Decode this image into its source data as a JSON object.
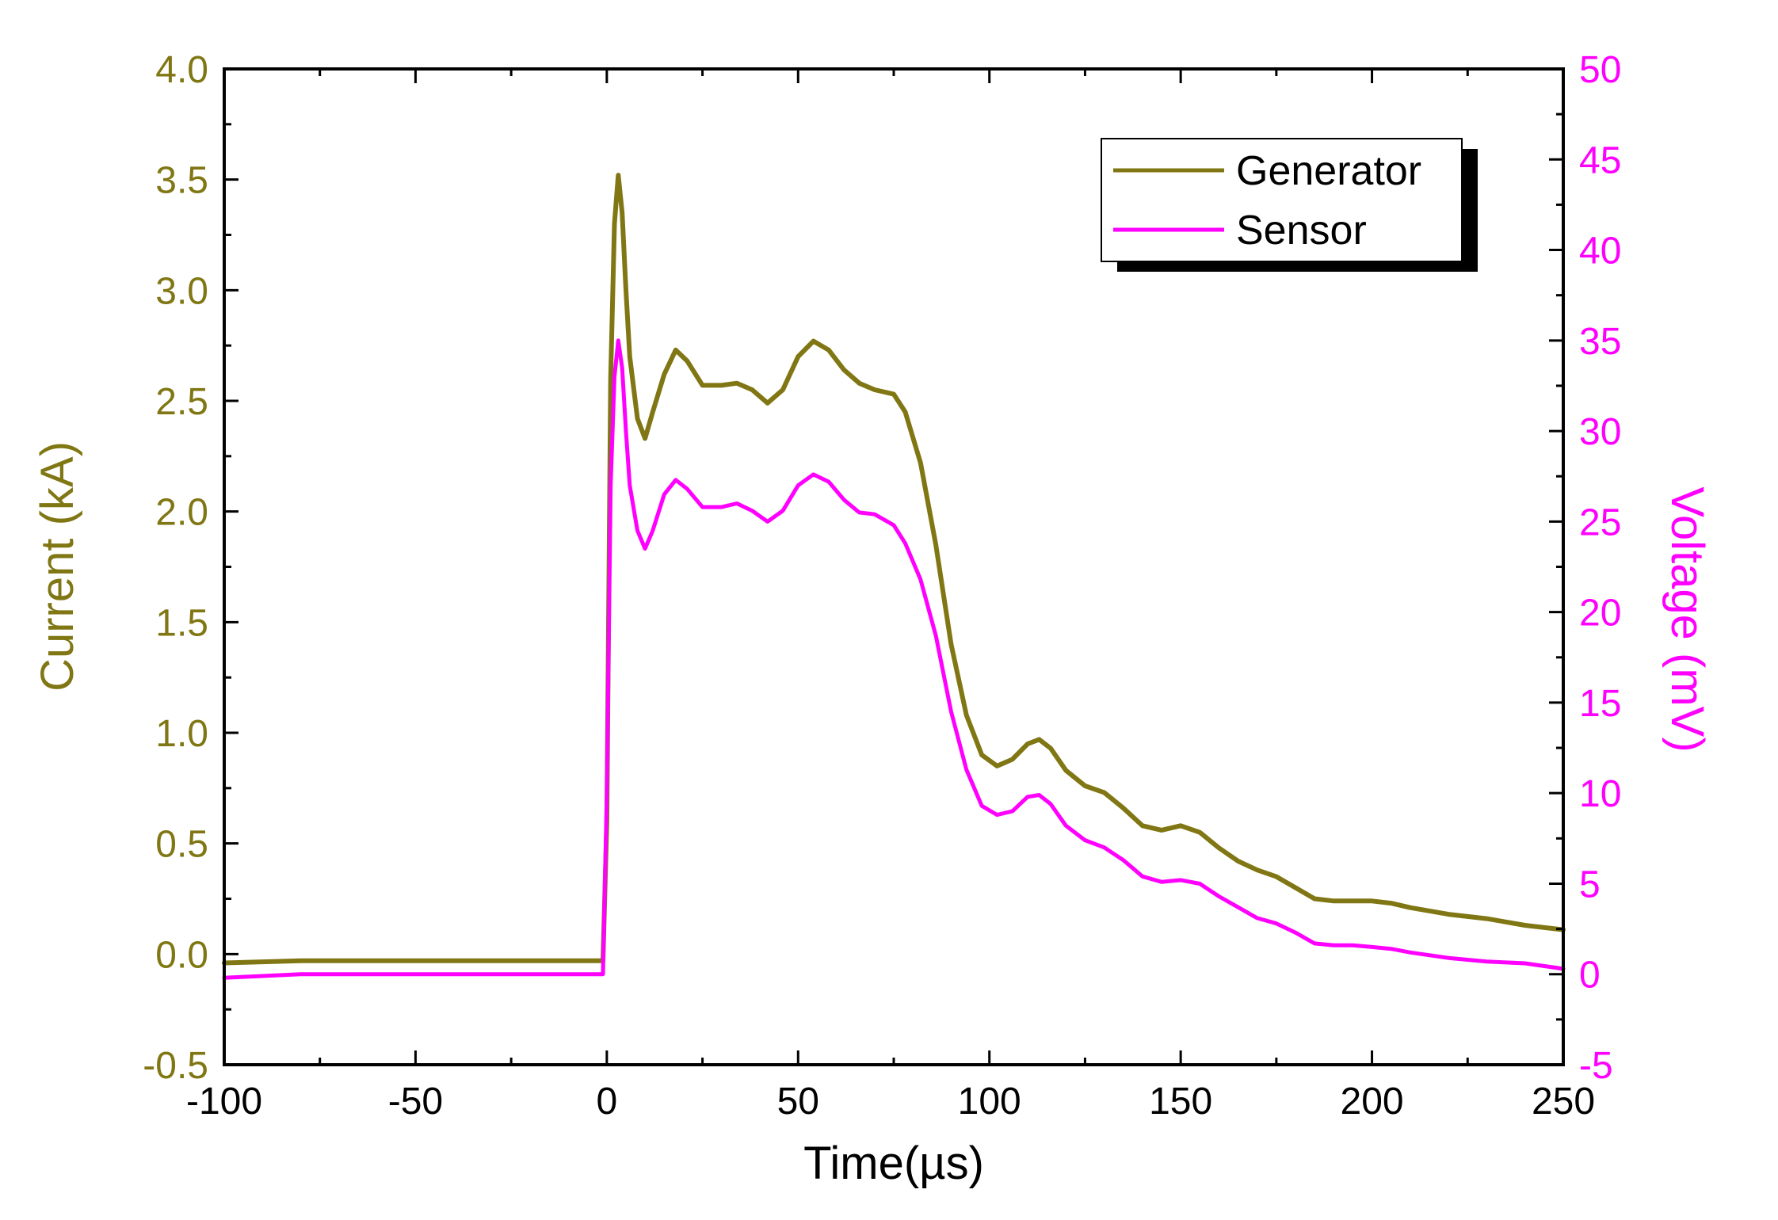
{
  "colors": {
    "generator": "#807714",
    "sensor": "#ff00ff",
    "axis": "#000000",
    "left_axis_text": "#807714",
    "right_axis_text": "#ff00ff"
  },
  "chart_data": {
    "type": "line",
    "xlabel": "Time(µs)",
    "ylabel_left": "Current (kA)",
    "ylabel_right": "Voltage (mV)",
    "xlim": [
      -100,
      250
    ],
    "ylim_left": [
      -0.5,
      4.0
    ],
    "ylim_right": [
      -5,
      50
    ],
    "grid": false,
    "legend_position": "top-right",
    "x_ticks": [
      "-100",
      "-50",
      "0",
      "50",
      "100",
      "150",
      "200",
      "250"
    ],
    "y_left_ticks": [
      "-0.5",
      "0.0",
      "0.5",
      "1.0",
      "1.5",
      "2.0",
      "2.5",
      "3.0",
      "3.5",
      "4.0"
    ],
    "y_right_ticks": [
      "-5",
      "0",
      "5",
      "10",
      "15",
      "20",
      "25",
      "30",
      "35",
      "40",
      "45",
      "50"
    ],
    "series": [
      {
        "name": "Generator",
        "axis": "left",
        "points": [
          [
            -100,
            -0.04
          ],
          [
            -80,
            -0.03
          ],
          [
            -60,
            -0.03
          ],
          [
            -40,
            -0.03
          ],
          [
            -20,
            -0.03
          ],
          [
            -1,
            -0.03
          ],
          [
            0,
            0.6
          ],
          [
            1,
            2.6
          ],
          [
            2,
            3.3
          ],
          [
            3,
            3.52
          ],
          [
            4,
            3.35
          ],
          [
            5,
            3.0
          ],
          [
            6,
            2.7
          ],
          [
            8,
            2.42
          ],
          [
            10,
            2.33
          ],
          [
            12,
            2.45
          ],
          [
            15,
            2.62
          ],
          [
            18,
            2.73
          ],
          [
            21,
            2.68
          ],
          [
            25,
            2.57
          ],
          [
            30,
            2.57
          ],
          [
            34,
            2.58
          ],
          [
            38,
            2.55
          ],
          [
            42,
            2.49
          ],
          [
            46,
            2.55
          ],
          [
            50,
            2.7
          ],
          [
            54,
            2.77
          ],
          [
            58,
            2.73
          ],
          [
            62,
            2.64
          ],
          [
            66,
            2.58
          ],
          [
            70,
            2.55
          ],
          [
            75,
            2.53
          ],
          [
            78,
            2.45
          ],
          [
            82,
            2.22
          ],
          [
            86,
            1.85
          ],
          [
            90,
            1.4
          ],
          [
            94,
            1.08
          ],
          [
            98,
            0.9
          ],
          [
            102,
            0.85
          ],
          [
            106,
            0.88
          ],
          [
            110,
            0.95
          ],
          [
            113,
            0.97
          ],
          [
            116,
            0.93
          ],
          [
            120,
            0.83
          ],
          [
            125,
            0.76
          ],
          [
            130,
            0.73
          ],
          [
            135,
            0.66
          ],
          [
            140,
            0.58
          ],
          [
            145,
            0.56
          ],
          [
            150,
            0.58
          ],
          [
            155,
            0.55
          ],
          [
            160,
            0.48
          ],
          [
            165,
            0.42
          ],
          [
            170,
            0.38
          ],
          [
            175,
            0.35
          ],
          [
            180,
            0.3
          ],
          [
            185,
            0.25
          ],
          [
            190,
            0.24
          ],
          [
            195,
            0.24
          ],
          [
            200,
            0.24
          ],
          [
            205,
            0.23
          ],
          [
            210,
            0.21
          ],
          [
            220,
            0.18
          ],
          [
            230,
            0.16
          ],
          [
            240,
            0.13
          ],
          [
            250,
            0.11
          ]
        ]
      },
      {
        "name": "Sensor",
        "axis": "right",
        "points": [
          [
            -100,
            -0.2
          ],
          [
            -80,
            0.0
          ],
          [
            -60,
            0.0
          ],
          [
            -40,
            0.0
          ],
          [
            -20,
            0.0
          ],
          [
            -1,
            0.0
          ],
          [
            0,
            10
          ],
          [
            1,
            27
          ],
          [
            2,
            33
          ],
          [
            3,
            35
          ],
          [
            4,
            33.5
          ],
          [
            5,
            30
          ],
          [
            6,
            27
          ],
          [
            8,
            24.5
          ],
          [
            10,
            23.5
          ],
          [
            12,
            24.5
          ],
          [
            15,
            26.5
          ],
          [
            18,
            27.3
          ],
          [
            21,
            26.8
          ],
          [
            25,
            25.8
          ],
          [
            30,
            25.8
          ],
          [
            34,
            26.0
          ],
          [
            38,
            25.6
          ],
          [
            42,
            25.0
          ],
          [
            46,
            25.6
          ],
          [
            50,
            27.0
          ],
          [
            54,
            27.6
          ],
          [
            58,
            27.2
          ],
          [
            62,
            26.2
          ],
          [
            66,
            25.5
          ],
          [
            70,
            25.4
          ],
          [
            75,
            24.8
          ],
          [
            78,
            23.8
          ],
          [
            82,
            21.8
          ],
          [
            86,
            18.7
          ],
          [
            90,
            14.5
          ],
          [
            94,
            11.3
          ],
          [
            98,
            9.3
          ],
          [
            102,
            8.8
          ],
          [
            106,
            9.0
          ],
          [
            110,
            9.8
          ],
          [
            113,
            9.9
          ],
          [
            116,
            9.4
          ],
          [
            120,
            8.2
          ],
          [
            125,
            7.4
          ],
          [
            130,
            7.0
          ],
          [
            135,
            6.3
          ],
          [
            140,
            5.4
          ],
          [
            145,
            5.1
          ],
          [
            150,
            5.2
          ],
          [
            155,
            5.0
          ],
          [
            160,
            4.3
          ],
          [
            165,
            3.7
          ],
          [
            170,
            3.1
          ],
          [
            175,
            2.8
          ],
          [
            180,
            2.3
          ],
          [
            185,
            1.7
          ],
          [
            190,
            1.6
          ],
          [
            195,
            1.6
          ],
          [
            200,
            1.5
          ],
          [
            205,
            1.4
          ],
          [
            210,
            1.2
          ],
          [
            220,
            0.9
          ],
          [
            230,
            0.7
          ],
          [
            240,
            0.6
          ],
          [
            250,
            0.3
          ]
        ]
      }
    ]
  }
}
